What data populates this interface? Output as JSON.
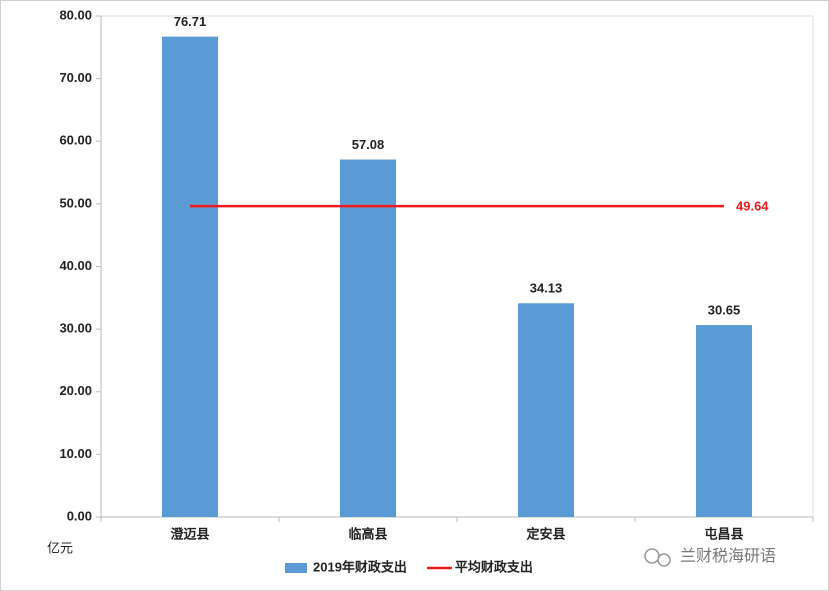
{
  "chart_data": {
    "type": "bar",
    "y_label": "亿元",
    "categories": [
      "澄迈县",
      "临高县",
      "定安县",
      "屯昌县"
    ],
    "series": [
      {
        "name": "2019年财政支出",
        "type": "bar",
        "color": "#5b9bd5",
        "values": [
          76.71,
          57.08,
          34.13,
          30.65
        ]
      },
      {
        "name": "平均财政支出",
        "type": "line",
        "color": "#ee1c1c",
        "values": [
          49.64,
          49.64,
          49.64,
          49.64
        ]
      }
    ],
    "ylim": [
      0,
      80
    ],
    "yticks": [
      {
        "value": 0,
        "label": "0.00"
      },
      {
        "value": 10,
        "label": "10.00"
      },
      {
        "value": 20,
        "label": "20.00"
      },
      {
        "value": 30,
        "label": "30.00"
      },
      {
        "value": 40,
        "label": "40.00"
      },
      {
        "value": 50,
        "label": "50.00"
      },
      {
        "value": 60,
        "label": "60.00"
      },
      {
        "value": 70,
        "label": "70.00"
      },
      {
        "value": 80,
        "label": "80.00"
      }
    ],
    "watermark": "兰财税海研语"
  }
}
